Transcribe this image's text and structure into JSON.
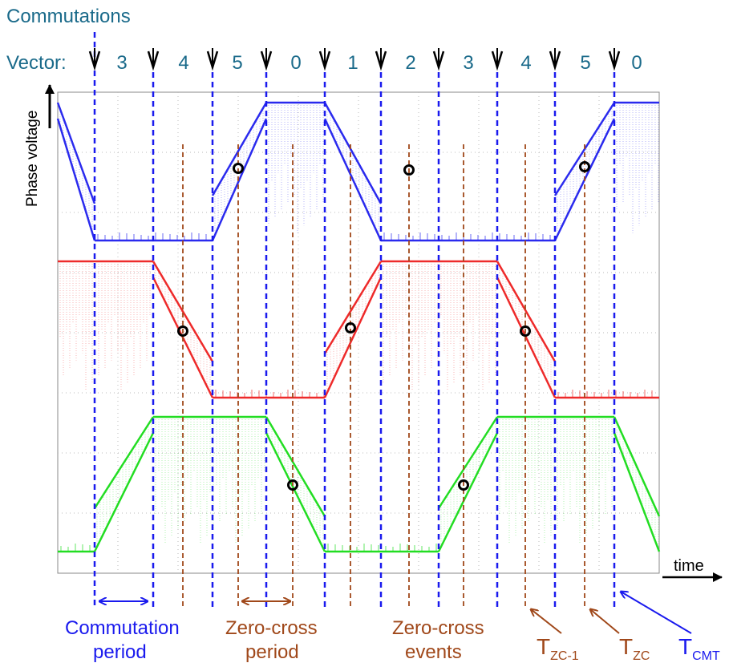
{
  "title": "Commutations",
  "vector_prefix": "Vector:",
  "vectors": [
    "3",
    "4",
    "5",
    "0",
    "1",
    "2",
    "3",
    "4",
    "5",
    "0"
  ],
  "y_axis_label": "Phase voltage",
  "x_axis_label": "time",
  "annotations": {
    "commutation_period": [
      "Commutation",
      "period"
    ],
    "zero_cross_period": [
      "Zero-cross",
      "period"
    ],
    "zero_cross_events": [
      "Zero-cross",
      "events"
    ],
    "t_zc_prev": {
      "main": "T",
      "sub": "ZC-1"
    },
    "t_zc": {
      "main": "T",
      "sub": "ZC"
    },
    "t_cmt": {
      "main": "T",
      "sub": "CMT"
    }
  },
  "colors": {
    "title_text": "#1a6a8a",
    "commutation_lines": "#1a1aee",
    "zero_cross_lines": "#a0481a",
    "phase_a": "#2a2aee",
    "phase_b": "#ee2a2a",
    "phase_c": "#22dd22",
    "grid": "#bbbbbb"
  },
  "chart_data": {
    "type": "line",
    "series": [
      {
        "name": "",
        "color_key": "phase_a"
      },
      {
        "name": "",
        "color_key": "phase_b"
      },
      {
        "name": "",
        "color_key": "phase_c"
      }
    ]
  }
}
